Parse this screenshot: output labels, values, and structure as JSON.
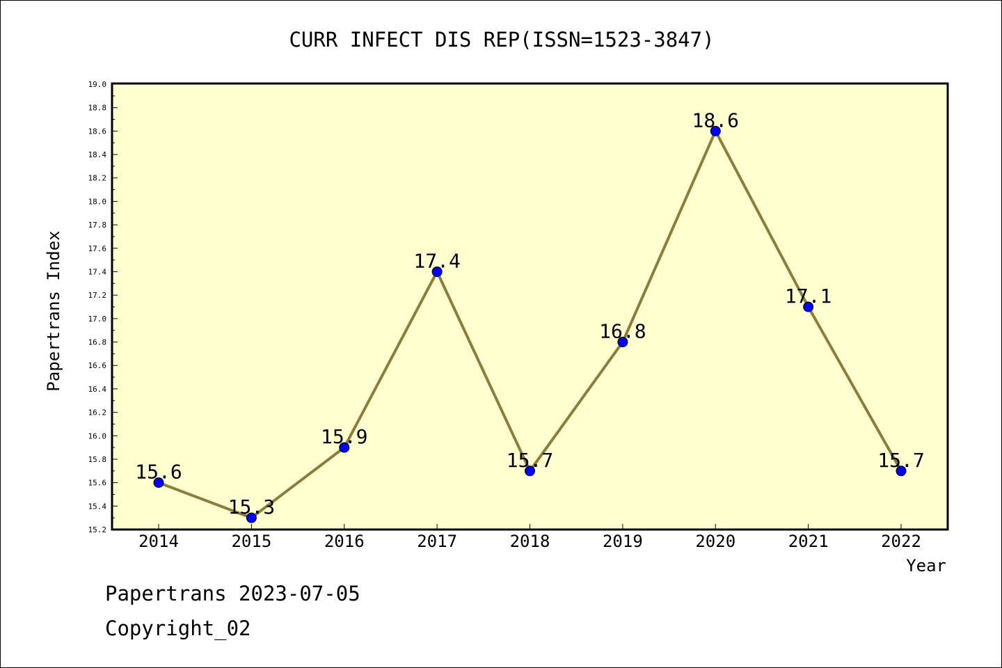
{
  "chart_data": {
    "type": "line",
    "title": "CURR INFECT DIS REP(ISSN=1523-3847)",
    "xlabel": "Year",
    "ylabel": "Papertrans Index",
    "categories": [
      "2014",
      "2015",
      "2016",
      "2017",
      "2018",
      "2019",
      "2020",
      "2021",
      "2022"
    ],
    "series": [
      {
        "values": [
          15.6,
          15.3,
          15.9,
          17.4,
          15.7,
          16.8,
          18.6,
          17.1,
          15.7
        ],
        "data_labels": [
          "15.6",
          "15.3",
          "15.9",
          "17.4",
          "15.7",
          "16.8",
          "18.6",
          "17.1",
          "15.7"
        ]
      }
    ],
    "ylim": [
      15.2,
      19.0
    ],
    "yticks": [
      "15.2",
      "15.4",
      "15.6",
      "15.8",
      "16.0",
      "16.2",
      "16.4",
      "16.6",
      "16.8",
      "17.0",
      "17.2",
      "17.4",
      "17.6",
      "17.8",
      "18.0",
      "18.2",
      "18.4",
      "18.6",
      "18.8",
      "19.0"
    ],
    "grid": false,
    "colors": {
      "plot_background": "#ffffd0",
      "line": "#8b7d3a",
      "marker": "#0000ff"
    }
  },
  "footer": {
    "date_line": "Papertrans 2023-07-05",
    "copyright_line": "Copyright_02"
  }
}
